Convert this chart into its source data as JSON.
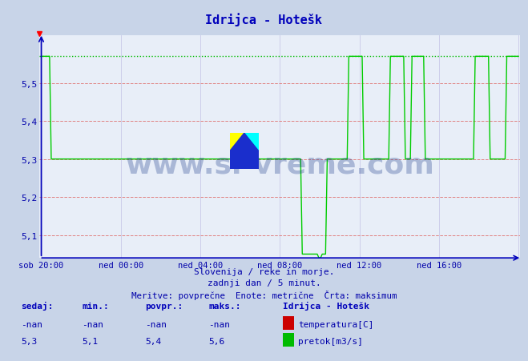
{
  "title": "Idrijca - Hotešk",
  "bg_color": "#c8d4e8",
  "plot_bg_color": "#e8eef8",
  "line_color": "#00cc00",
  "dashed_max_color": "#00bb00",
  "axis_color": "#0000bb",
  "text_color": "#0000aa",
  "red_grid_color": "#e08080",
  "blue_grid_color": "#c8c8e8",
  "ylim": [
    5.04,
    5.625
  ],
  "yticks": [
    5.1,
    5.2,
    5.3,
    5.4,
    5.5
  ],
  "xlabel_ticks": [
    "sob 20:00",
    "ned 00:00",
    "ned 04:00",
    "ned 08:00",
    "ned 12:00",
    "ned 16:00"
  ],
  "subtitle1": "Slovenija / reke in morje.",
  "subtitle2": "zadnji dan / 5 minut.",
  "subtitle3": "Meritve: povprečne  Enote: metrične  Črta: maksimum",
  "footer_label1": "sedaj:",
  "footer_label2": "min.:",
  "footer_label3": "povpr.:",
  "footer_label4": "maks.:",
  "footer_val1_temp": "-nan",
  "footer_val2_temp": "-nan",
  "footer_val3_temp": "-nan",
  "footer_val4_temp": "-nan",
  "footer_val1_flow": "5,3",
  "footer_val2_flow": "5,1",
  "footer_val3_flow": "5,4",
  "footer_val4_flow": "5,6",
  "legend_title": "Idrijca - Hotešk",
  "legend_temp_label": "temperatura[C]",
  "legend_flow_label": "pretok[m3/s]",
  "max_value": 5.57,
  "num_points": 288
}
